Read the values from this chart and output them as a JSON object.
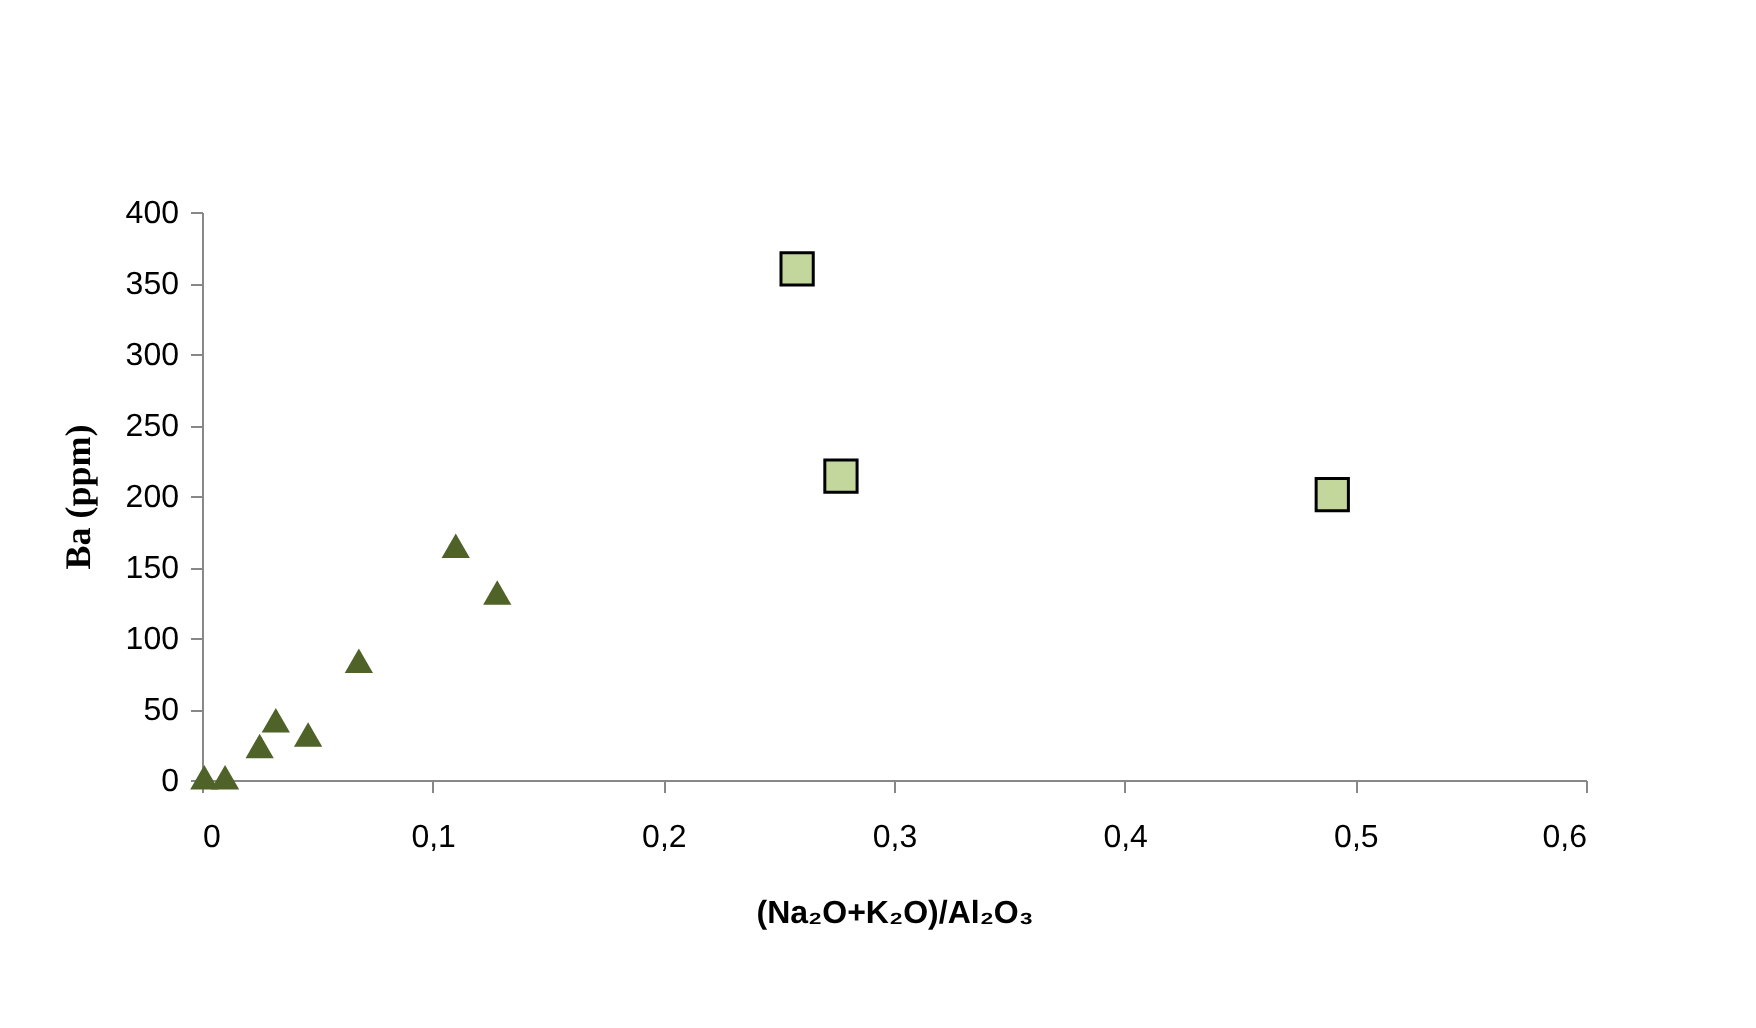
{
  "chart_data": {
    "type": "scatter",
    "xlabel": "(Na₂O+K₂O)/Al₂O₃",
    "ylabel": "Ba (ppm)",
    "xlim": [
      0,
      0.6
    ],
    "ylim": [
      0,
      400
    ],
    "xticks": [
      0,
      {
        "value": 0.1,
        "label": "0,1"
      },
      {
        "value": 0.2,
        "label": "0,2"
      },
      {
        "value": 0.3,
        "label": "0,3"
      },
      {
        "value": 0.4,
        "label": "0,4"
      },
      {
        "value": 0.5,
        "label": "0,5"
      },
      {
        "value": 0.6,
        "label": "0,6"
      }
    ],
    "yticks": [
      0,
      50,
      100,
      150,
      200,
      250,
      300,
      350,
      400
    ],
    "grid": false,
    "series": [
      {
        "color": "#4f6228",
        "marker": "triangle",
        "x": [
          0.001,
          0.01,
          0.025,
          0.032,
          0.046,
          0.068,
          0.11,
          0.128
        ],
        "values": [
          2,
          2,
          24,
          42,
          32,
          84,
          165,
          132
        ]
      },
      {
        "color": "#c3d69b",
        "marker": "square",
        "x": [
          0.258,
          0.277,
          0.49
        ],
        "values": [
          360,
          214,
          201
        ]
      }
    ]
  }
}
